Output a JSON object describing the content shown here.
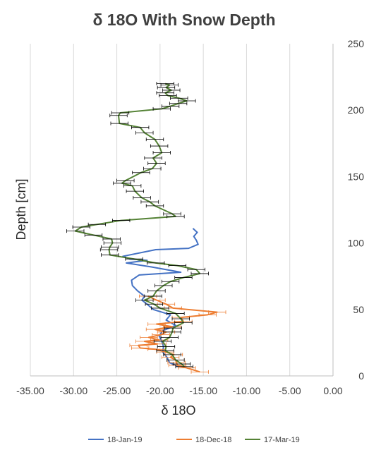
{
  "chart_data": {
    "type": "line",
    "title": "δ 18O With Snow Depth",
    "xlabel": "δ 18O",
    "ylabel": "Depth [cm]",
    "xlim": [
      -35,
      0
    ],
    "ylim": [
      0,
      250
    ],
    "x_ticks": [
      "-35.00",
      "-30.00",
      "-25.00",
      "-20.00",
      "-15.00",
      "-10.00",
      "-5.00",
      "0.00"
    ],
    "x_tick_values": [
      -35,
      -30,
      -25,
      -20,
      -15,
      -10,
      -5,
      0
    ],
    "y_ticks": [
      "0",
      "50",
      "100",
      "150",
      "200",
      "250"
    ],
    "y_tick_values": [
      0,
      50,
      100,
      150,
      200,
      250
    ],
    "grid": "vertical",
    "y_axis_side": "right",
    "legend_position": "bottom",
    "series": [
      {
        "name": "18-Jan-19",
        "color": "#4472C4",
        "error_bars": false,
        "points": [
          [
            -16.2,
            111
          ],
          [
            -15.7,
            108
          ],
          [
            -16.1,
            105
          ],
          [
            -15.8,
            102
          ],
          [
            -15.6,
            99
          ],
          [
            -16.7,
            96
          ],
          [
            -20.5,
            95
          ],
          [
            -24.3,
            90
          ],
          [
            -23.5,
            88
          ],
          [
            -21.5,
            87
          ],
          [
            -23.9,
            85
          ],
          [
            -21.0,
            82
          ],
          [
            -17.6,
            78
          ],
          [
            -22.4,
            76
          ],
          [
            -23.3,
            72
          ],
          [
            -23.2,
            68
          ],
          [
            -22.6,
            64
          ],
          [
            -21.8,
            60
          ],
          [
            -22.1,
            57
          ],
          [
            -21.5,
            54
          ],
          [
            -20.8,
            50
          ],
          [
            -18.8,
            46
          ],
          [
            -19.3,
            42
          ],
          [
            -18.2,
            38
          ],
          [
            -19.7,
            34
          ],
          [
            -20.1,
            30
          ],
          [
            -19.8,
            26
          ],
          [
            -19.6,
            22
          ],
          [
            -19.7,
            18
          ],
          [
            -19.2,
            14
          ],
          [
            -18.9,
            10
          ],
          [
            -17.9,
            7
          ]
        ]
      },
      {
        "name": "18-Dec-18",
        "color": "#ED7D31",
        "error_bars": true,
        "points": [
          [
            -21.4,
            60
          ],
          [
            -20.4,
            57
          ],
          [
            -19.3,
            54
          ],
          [
            -18.5,
            51
          ],
          [
            -13.4,
            48
          ],
          [
            -14.5,
            46
          ],
          [
            -17.6,
            44
          ],
          [
            -17.3,
            41
          ],
          [
            -20.4,
            39
          ],
          [
            -18.6,
            37
          ],
          [
            -20.6,
            35
          ],
          [
            -19.3,
            33
          ],
          [
            -19.9,
            31
          ],
          [
            -21.3,
            29
          ],
          [
            -20.1,
            27
          ],
          [
            -21.8,
            26
          ],
          [
            -20.3,
            24
          ],
          [
            -22.5,
            23
          ],
          [
            -22.3,
            21
          ],
          [
            -20.4,
            20
          ],
          [
            -19.4,
            18
          ],
          [
            -18.4,
            16
          ],
          [
            -18.8,
            14
          ],
          [
            -18.2,
            12
          ],
          [
            -18.1,
            10
          ],
          [
            -18.0,
            8
          ],
          [
            -16.9,
            6
          ],
          [
            -15.4,
            3
          ]
        ]
      },
      {
        "name": "17-Mar-19",
        "color": "#548235",
        "error_bars": true,
        "points": [
          [
            -19.4,
            220
          ],
          [
            -18.9,
            219
          ],
          [
            -19.3,
            217
          ],
          [
            -18.7,
            215
          ],
          [
            -19.4,
            213
          ],
          [
            -19.1,
            211
          ],
          [
            -17.8,
            209
          ],
          [
            -16.9,
            207
          ],
          [
            -17.9,
            205
          ],
          [
            -18.8,
            203
          ],
          [
            -19.8,
            201
          ],
          [
            -24.6,
            198
          ],
          [
            -24.8,
            196
          ],
          [
            -24.7,
            190
          ],
          [
            -22.3,
            187
          ],
          [
            -21.8,
            183
          ],
          [
            -20.6,
            178
          ],
          [
            -20.1,
            173
          ],
          [
            -19.8,
            168
          ],
          [
            -20.8,
            164
          ],
          [
            -20.4,
            160
          ],
          [
            -20.9,
            156
          ],
          [
            -22.2,
            153
          ],
          [
            -24.0,
            147
          ],
          [
            -24.4,
            145
          ],
          [
            -23.2,
            143
          ],
          [
            -22.9,
            139
          ],
          [
            -22.1,
            134
          ],
          [
            -21.2,
            131
          ],
          [
            -20.6,
            128
          ],
          [
            -18.6,
            122
          ],
          [
            -18.2,
            120
          ],
          [
            -24.5,
            117
          ],
          [
            -27.3,
            114
          ],
          [
            -29.1,
            112
          ],
          [
            -29.8,
            109
          ],
          [
            -27.7,
            106
          ],
          [
            -25.6,
            103
          ],
          [
            -25.5,
            100
          ],
          [
            -25.8,
            97
          ],
          [
            -25.9,
            95
          ],
          [
            -25.8,
            91
          ],
          [
            -23.0,
            88
          ],
          [
            -20.5,
            85
          ],
          [
            -18.0,
            83
          ],
          [
            -15.8,
            80
          ],
          [
            -15.4,
            77
          ],
          [
            -17.3,
            74
          ],
          [
            -18.8,
            71
          ],
          [
            -19.6,
            68
          ],
          [
            -20.4,
            64
          ],
          [
            -20.8,
            60
          ],
          [
            -21.8,
            57
          ],
          [
            -20.7,
            54
          ],
          [
            -20.0,
            51
          ],
          [
            -18.2,
            47
          ],
          [
            -17.6,
            43
          ],
          [
            -17.3,
            40
          ],
          [
            -18.5,
            36
          ],
          [
            -18.6,
            33
          ],
          [
            -18.9,
            29
          ],
          [
            -19.7,
            26
          ],
          [
            -19.3,
            22
          ],
          [
            -19.4,
            19
          ],
          [
            -18.6,
            16
          ],
          [
            -18.2,
            12
          ],
          [
            -17.5,
            9
          ],
          [
            -17.2,
            7
          ]
        ]
      }
    ]
  }
}
